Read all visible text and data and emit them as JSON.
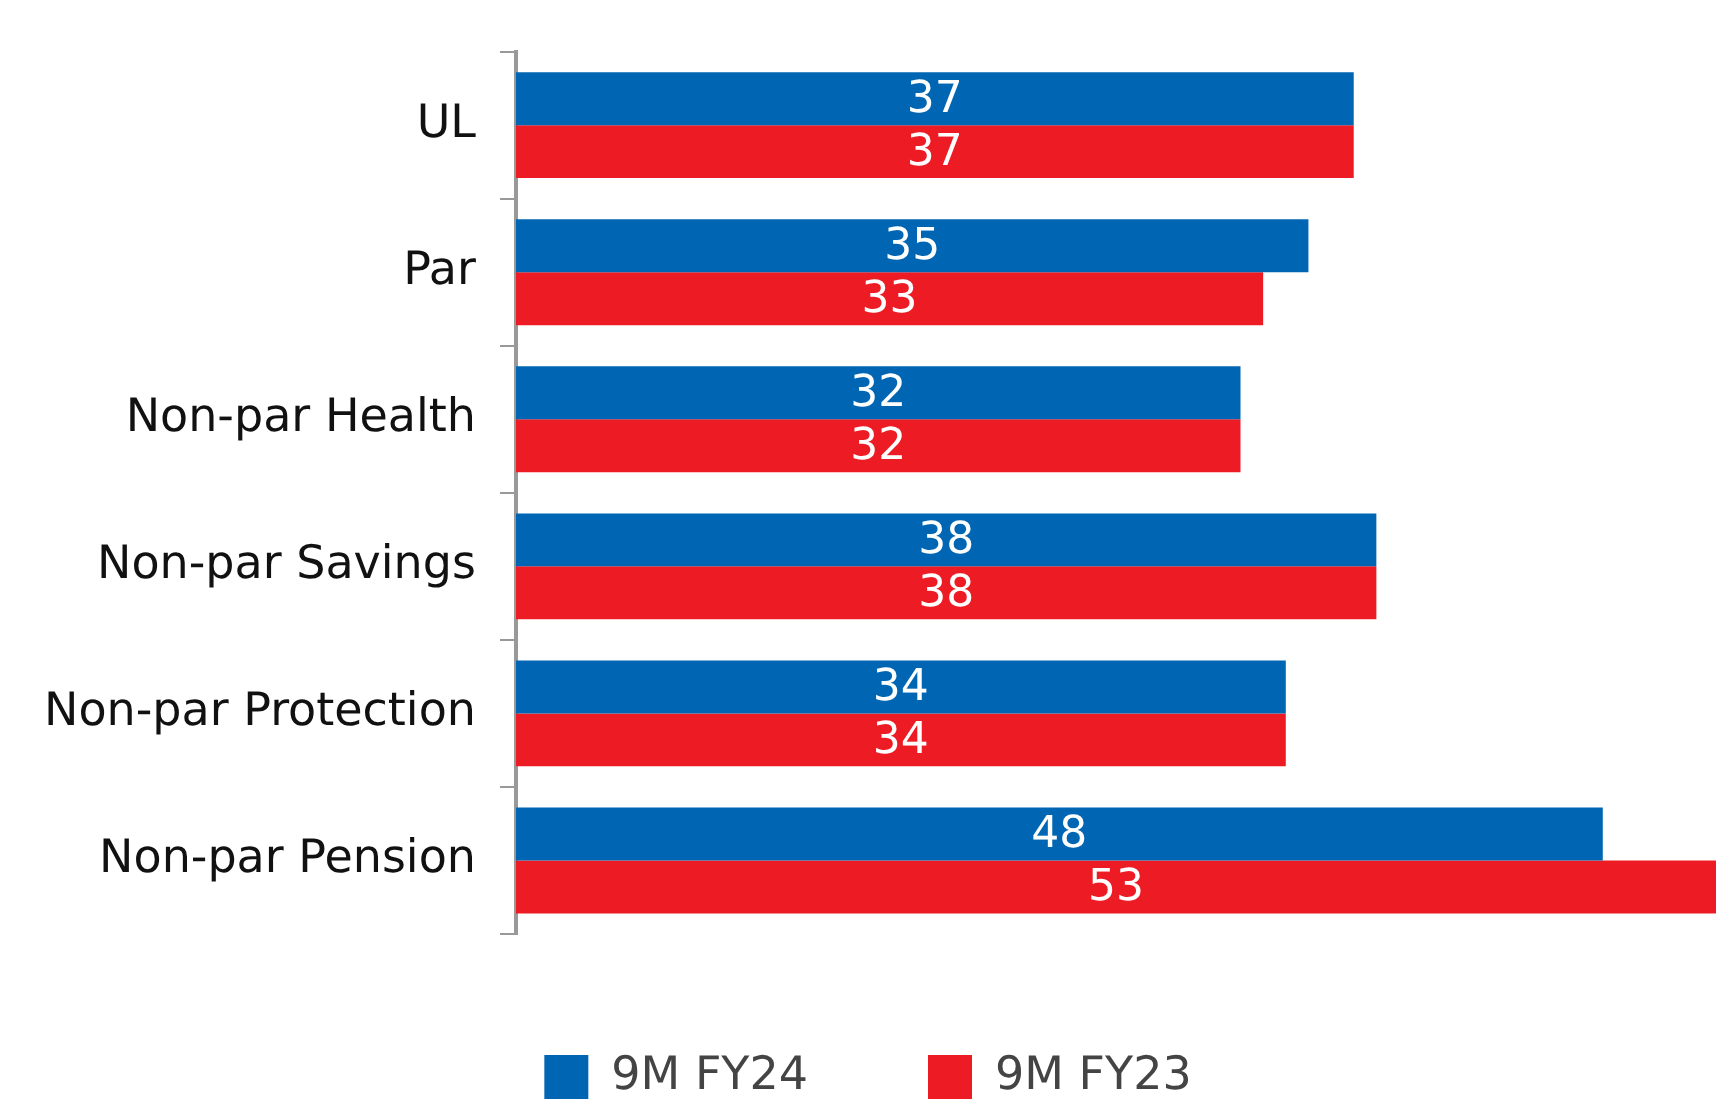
{
  "chart_data": {
    "type": "bar",
    "orientation": "horizontal",
    "categories": [
      "UL",
      "Par",
      "Non-par Health",
      "Non-par Savings",
      "Non-par Protection",
      "Non-par Pension"
    ],
    "series": [
      {
        "name": "9M FY24",
        "color": "#0066b3",
        "values": [
          37,
          35,
          32,
          38,
          34,
          48
        ]
      },
      {
        "name": "9M FY23",
        "color": "#ed1c24",
        "values": [
          37,
          33,
          32,
          38,
          34,
          53
        ]
      }
    ],
    "data_labels": true,
    "legend": "bottom",
    "grid": false,
    "tick_labels": "y"
  }
}
